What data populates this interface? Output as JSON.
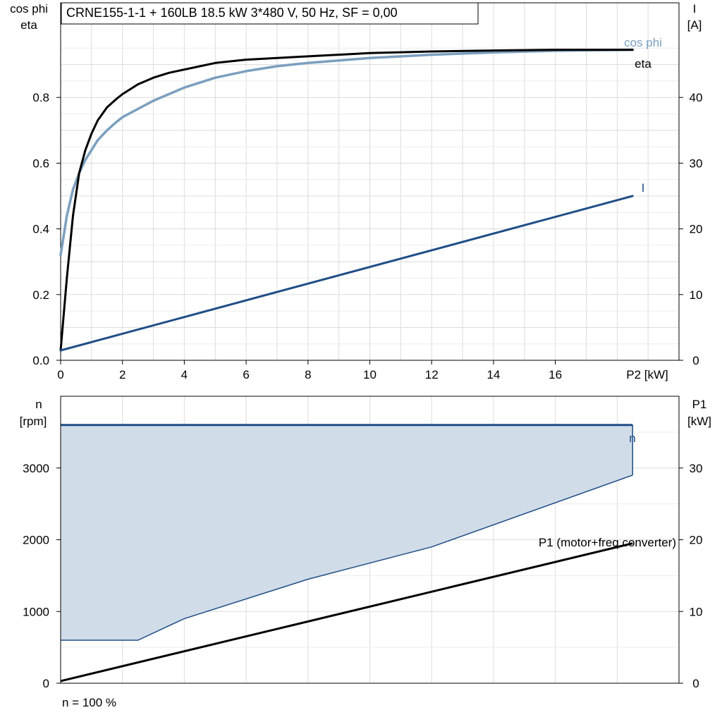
{
  "chart_data": [
    {
      "type": "line",
      "title": "CRNE155-1-1 + 160LB   18.5 kW   3*480 V, 50 Hz, SF = 0,00",
      "xlabel": "P2 [kW]",
      "ylabel_left": [
        "cos phi",
        "eta"
      ],
      "ylabel_right": [
        "I",
        "[A]"
      ],
      "xlim": [
        0,
        20
      ],
      "ylim_left": [
        0,
        1.0
      ],
      "ylim_right": [
        0,
        50
      ],
      "x_ticks": [
        "0",
        "2",
        "4",
        "6",
        "8",
        "10",
        "12",
        "14",
        "16"
      ],
      "y_ticks_left": [
        "0.0",
        "0.2",
        "0.4",
        "0.6",
        "0.8"
      ],
      "y_ticks_right": [
        "0",
        "10",
        "20",
        "30",
        "40"
      ],
      "grid": true,
      "series": [
        {
          "name": "cos phi",
          "axis": "left",
          "color": "#7b9fbf",
          "x": [
            0,
            0.2,
            0.4,
            0.6,
            0.8,
            1.0,
            1.2,
            1.5,
            1.8,
            2.0,
            2.5,
            3.0,
            3.5,
            4.0,
            5.0,
            6.0,
            7.0,
            8.0,
            10.0,
            12.0,
            14.0,
            16.0,
            18.5
          ],
          "y": [
            0.32,
            0.44,
            0.52,
            0.57,
            0.61,
            0.64,
            0.67,
            0.7,
            0.725,
            0.74,
            0.765,
            0.79,
            0.81,
            0.83,
            0.86,
            0.88,
            0.895,
            0.905,
            0.92,
            0.93,
            0.937,
            0.942,
            0.945
          ]
        },
        {
          "name": "eta",
          "axis": "left",
          "color": "#000000",
          "x": [
            0,
            0.2,
            0.4,
            0.6,
            0.8,
            1.0,
            1.2,
            1.5,
            1.8,
            2.0,
            2.5,
            3.0,
            3.5,
            4.0,
            5.0,
            6.0,
            7.0,
            8.0,
            10.0,
            12.0,
            14.0,
            16.0,
            18.5
          ],
          "y": [
            0.03,
            0.25,
            0.44,
            0.57,
            0.64,
            0.69,
            0.73,
            0.77,
            0.795,
            0.81,
            0.84,
            0.86,
            0.875,
            0.885,
            0.905,
            0.915,
            0.92,
            0.925,
            0.935,
            0.94,
            0.943,
            0.945,
            0.945
          ]
        },
        {
          "name": "I",
          "axis": "right",
          "color": "#1f4e86",
          "x": [
            0,
            18.5
          ],
          "y": [
            1.5,
            25.0
          ]
        }
      ]
    },
    {
      "type": "area",
      "xlim": [
        0,
        20
      ],
      "ylabel_left": [
        "n",
        "[rpm]"
      ],
      "ylabel_right": [
        "P1",
        "[kW]"
      ],
      "ylim_left": [
        0,
        4000
      ],
      "ylim_right": [
        0,
        40
      ],
      "y_ticks_left": [
        "0",
        "1000",
        "2000",
        "3000"
      ],
      "y_ticks_right": [
        "0",
        "10",
        "20",
        "30"
      ],
      "grid": true,
      "footer": "n = 100 %",
      "speed_range": {
        "name": "n",
        "x_upper": [
          0,
          18.5
        ],
        "upper": [
          3600,
          3600
        ],
        "x_lower": [
          0,
          2.5,
          4.0,
          8.0,
          12.0,
          18.5
        ],
        "lower": [
          600,
          600,
          900,
          1450,
          1900,
          2900
        ],
        "fill_color": "#d0dce8",
        "line_color": "#1f4e86"
      },
      "series": [
        {
          "name": "P1 (motor+freq.converter)",
          "axis": "right",
          "color": "#000000",
          "x": [
            0,
            18.5
          ],
          "y": [
            0.3,
            19.5
          ]
        }
      ]
    }
  ]
}
